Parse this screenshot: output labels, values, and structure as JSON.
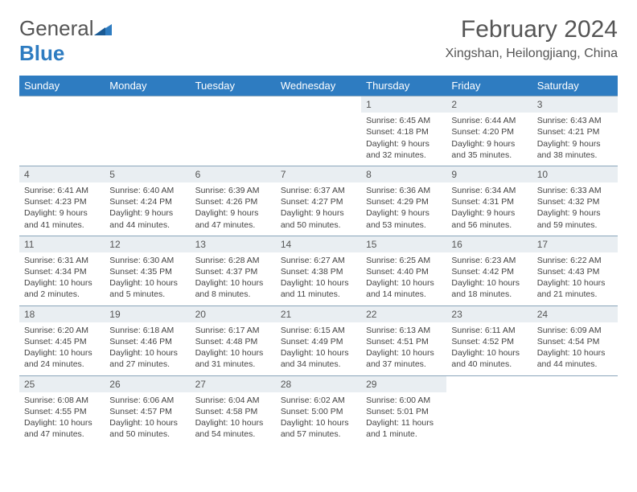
{
  "logo": {
    "text1": "General",
    "text2": "Blue"
  },
  "title": "February 2024",
  "location": "Xingshan, Heilongjiang, China",
  "colors": {
    "header_bg": "#2e7cc1",
    "header_text": "#ffffff",
    "daynum_bg": "#e9eef2",
    "border": "#8aa6bb",
    "body_text": "#444444",
    "title_text": "#555555"
  },
  "dayNames": [
    "Sunday",
    "Monday",
    "Tuesday",
    "Wednesday",
    "Thursday",
    "Friday",
    "Saturday"
  ],
  "weeks": [
    [
      null,
      null,
      null,
      null,
      {
        "n": "1",
        "sr": "Sunrise: 6:45 AM",
        "ss": "Sunset: 4:18 PM",
        "d1": "Daylight: 9 hours",
        "d2": "and 32 minutes."
      },
      {
        "n": "2",
        "sr": "Sunrise: 6:44 AM",
        "ss": "Sunset: 4:20 PM",
        "d1": "Daylight: 9 hours",
        "d2": "and 35 minutes."
      },
      {
        "n": "3",
        "sr": "Sunrise: 6:43 AM",
        "ss": "Sunset: 4:21 PM",
        "d1": "Daylight: 9 hours",
        "d2": "and 38 minutes."
      }
    ],
    [
      {
        "n": "4",
        "sr": "Sunrise: 6:41 AM",
        "ss": "Sunset: 4:23 PM",
        "d1": "Daylight: 9 hours",
        "d2": "and 41 minutes."
      },
      {
        "n": "5",
        "sr": "Sunrise: 6:40 AM",
        "ss": "Sunset: 4:24 PM",
        "d1": "Daylight: 9 hours",
        "d2": "and 44 minutes."
      },
      {
        "n": "6",
        "sr": "Sunrise: 6:39 AM",
        "ss": "Sunset: 4:26 PM",
        "d1": "Daylight: 9 hours",
        "d2": "and 47 minutes."
      },
      {
        "n": "7",
        "sr": "Sunrise: 6:37 AM",
        "ss": "Sunset: 4:27 PM",
        "d1": "Daylight: 9 hours",
        "d2": "and 50 minutes."
      },
      {
        "n": "8",
        "sr": "Sunrise: 6:36 AM",
        "ss": "Sunset: 4:29 PM",
        "d1": "Daylight: 9 hours",
        "d2": "and 53 minutes."
      },
      {
        "n": "9",
        "sr": "Sunrise: 6:34 AM",
        "ss": "Sunset: 4:31 PM",
        "d1": "Daylight: 9 hours",
        "d2": "and 56 minutes."
      },
      {
        "n": "10",
        "sr": "Sunrise: 6:33 AM",
        "ss": "Sunset: 4:32 PM",
        "d1": "Daylight: 9 hours",
        "d2": "and 59 minutes."
      }
    ],
    [
      {
        "n": "11",
        "sr": "Sunrise: 6:31 AM",
        "ss": "Sunset: 4:34 PM",
        "d1": "Daylight: 10 hours",
        "d2": "and 2 minutes."
      },
      {
        "n": "12",
        "sr": "Sunrise: 6:30 AM",
        "ss": "Sunset: 4:35 PM",
        "d1": "Daylight: 10 hours",
        "d2": "and 5 minutes."
      },
      {
        "n": "13",
        "sr": "Sunrise: 6:28 AM",
        "ss": "Sunset: 4:37 PM",
        "d1": "Daylight: 10 hours",
        "d2": "and 8 minutes."
      },
      {
        "n": "14",
        "sr": "Sunrise: 6:27 AM",
        "ss": "Sunset: 4:38 PM",
        "d1": "Daylight: 10 hours",
        "d2": "and 11 minutes."
      },
      {
        "n": "15",
        "sr": "Sunrise: 6:25 AM",
        "ss": "Sunset: 4:40 PM",
        "d1": "Daylight: 10 hours",
        "d2": "and 14 minutes."
      },
      {
        "n": "16",
        "sr": "Sunrise: 6:23 AM",
        "ss": "Sunset: 4:42 PM",
        "d1": "Daylight: 10 hours",
        "d2": "and 18 minutes."
      },
      {
        "n": "17",
        "sr": "Sunrise: 6:22 AM",
        "ss": "Sunset: 4:43 PM",
        "d1": "Daylight: 10 hours",
        "d2": "and 21 minutes."
      }
    ],
    [
      {
        "n": "18",
        "sr": "Sunrise: 6:20 AM",
        "ss": "Sunset: 4:45 PM",
        "d1": "Daylight: 10 hours",
        "d2": "and 24 minutes."
      },
      {
        "n": "19",
        "sr": "Sunrise: 6:18 AM",
        "ss": "Sunset: 4:46 PM",
        "d1": "Daylight: 10 hours",
        "d2": "and 27 minutes."
      },
      {
        "n": "20",
        "sr": "Sunrise: 6:17 AM",
        "ss": "Sunset: 4:48 PM",
        "d1": "Daylight: 10 hours",
        "d2": "and 31 minutes."
      },
      {
        "n": "21",
        "sr": "Sunrise: 6:15 AM",
        "ss": "Sunset: 4:49 PM",
        "d1": "Daylight: 10 hours",
        "d2": "and 34 minutes."
      },
      {
        "n": "22",
        "sr": "Sunrise: 6:13 AM",
        "ss": "Sunset: 4:51 PM",
        "d1": "Daylight: 10 hours",
        "d2": "and 37 minutes."
      },
      {
        "n": "23",
        "sr": "Sunrise: 6:11 AM",
        "ss": "Sunset: 4:52 PM",
        "d1": "Daylight: 10 hours",
        "d2": "and 40 minutes."
      },
      {
        "n": "24",
        "sr": "Sunrise: 6:09 AM",
        "ss": "Sunset: 4:54 PM",
        "d1": "Daylight: 10 hours",
        "d2": "and 44 minutes."
      }
    ],
    [
      {
        "n": "25",
        "sr": "Sunrise: 6:08 AM",
        "ss": "Sunset: 4:55 PM",
        "d1": "Daylight: 10 hours",
        "d2": "and 47 minutes."
      },
      {
        "n": "26",
        "sr": "Sunrise: 6:06 AM",
        "ss": "Sunset: 4:57 PM",
        "d1": "Daylight: 10 hours",
        "d2": "and 50 minutes."
      },
      {
        "n": "27",
        "sr": "Sunrise: 6:04 AM",
        "ss": "Sunset: 4:58 PM",
        "d1": "Daylight: 10 hours",
        "d2": "and 54 minutes."
      },
      {
        "n": "28",
        "sr": "Sunrise: 6:02 AM",
        "ss": "Sunset: 5:00 PM",
        "d1": "Daylight: 10 hours",
        "d2": "and 57 minutes."
      },
      {
        "n": "29",
        "sr": "Sunrise: 6:00 AM",
        "ss": "Sunset: 5:01 PM",
        "d1": "Daylight: 11 hours",
        "d2": "and 1 minute."
      },
      null,
      null
    ]
  ]
}
